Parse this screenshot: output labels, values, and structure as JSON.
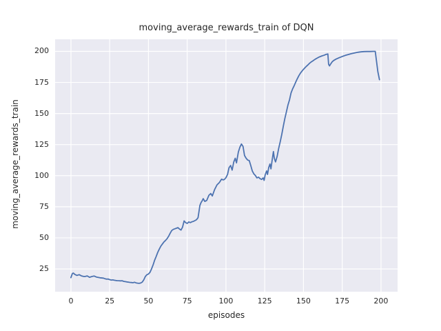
{
  "figure": {
    "background": "#ffffff"
  },
  "chart_data": {
    "type": "line",
    "title": "moving_average_rewards_train of DQN",
    "xlabel": "episodes",
    "ylabel": "moving_average_rewards_train",
    "x_ticks": [
      0,
      25,
      50,
      75,
      100,
      125,
      150,
      175,
      200
    ],
    "y_ticks": [
      25,
      50,
      75,
      100,
      125,
      150,
      175,
      200
    ],
    "xlim": [
      -10.2,
      210.7
    ],
    "ylim": [
      6.7,
      209.7
    ],
    "grid": true,
    "legend": false,
    "style": {
      "axes_background": "#eaeaf2",
      "grid_color": "#ffffff",
      "line_color": "#4c72b0",
      "text_color": "#262626",
      "line_width": 1.8
    },
    "series": [
      {
        "name": "moving_average_rewards_train",
        "points": [
          [
            0,
            18.0
          ],
          [
            0.9,
            21.3
          ],
          [
            1.6,
            21.7
          ],
          [
            2.5,
            20.6
          ],
          [
            3.9,
            19.8
          ],
          [
            5.3,
            20.4
          ],
          [
            6.8,
            19.4
          ],
          [
            8,
            19.0
          ],
          [
            9,
            18.9
          ],
          [
            10.5,
            19.4
          ],
          [
            12,
            18.3
          ],
          [
            13.5,
            18.9
          ],
          [
            15,
            19.3
          ],
          [
            16.4,
            18.5
          ],
          [
            18.7,
            17.9
          ],
          [
            20.9,
            17.6
          ],
          [
            22,
            17.1
          ],
          [
            23,
            16.8
          ],
          [
            24,
            16.9
          ],
          [
            25,
            16.4
          ],
          [
            26,
            16.1
          ],
          [
            27,
            16.2
          ],
          [
            28,
            15.9
          ],
          [
            29,
            15.7
          ],
          [
            30,
            15.6
          ],
          [
            31,
            15.5
          ],
          [
            32,
            15.4
          ],
          [
            33,
            15.5
          ],
          [
            34,
            15.0
          ],
          [
            35,
            14.8
          ],
          [
            36,
            14.6
          ],
          [
            37,
            14.4
          ],
          [
            38,
            14.2
          ],
          [
            39,
            14.1
          ],
          [
            40,
            13.9
          ],
          [
            41,
            14.3
          ],
          [
            42,
            13.8
          ],
          [
            43,
            13.6
          ],
          [
            44,
            13.4
          ],
          [
            45,
            13.7
          ],
          [
            46,
            14.4
          ],
          [
            47,
            16.3
          ],
          [
            48,
            18.9
          ],
          [
            49,
            20.4
          ],
          [
            50,
            20.9
          ],
          [
            51,
            22.3
          ],
          [
            52,
            25.0
          ],
          [
            53,
            28.3
          ],
          [
            54,
            32.0
          ],
          [
            55,
            35.1
          ],
          [
            56,
            38.3
          ],
          [
            57,
            41.0
          ],
          [
            58,
            43.3
          ],
          [
            59,
            45.1
          ],
          [
            60,
            46.7
          ],
          [
            61,
            47.9
          ],
          [
            62,
            49.3
          ],
          [
            63,
            51.3
          ],
          [
            64,
            53.7
          ],
          [
            65,
            55.9
          ],
          [
            66,
            56.8
          ],
          [
            67,
            57.3
          ],
          [
            68,
            57.7
          ],
          [
            69,
            58.2
          ],
          [
            70,
            57.1
          ],
          [
            71,
            56.3
          ],
          [
            72,
            58.6
          ],
          [
            73,
            63.6
          ],
          [
            74,
            62.3
          ],
          [
            75,
            61.6
          ],
          [
            76,
            62.8
          ],
          [
            77,
            62.3
          ],
          [
            78,
            62.9
          ],
          [
            79,
            63.3
          ],
          [
            80,
            63.9
          ],
          [
            81,
            64.6
          ],
          [
            82,
            66.2
          ],
          [
            82.7,
            72.0
          ],
          [
            83.2,
            76.1
          ],
          [
            84,
            78.5
          ],
          [
            84.6,
            79.7
          ],
          [
            85.3,
            81.5
          ],
          [
            86.4,
            79.3
          ],
          [
            87.6,
            80.1
          ],
          [
            89,
            84.3
          ],
          [
            90.2,
            85.7
          ],
          [
            91.2,
            83.7
          ],
          [
            92.7,
            88.9
          ],
          [
            94.2,
            92.6
          ],
          [
            95.7,
            94.5
          ],
          [
            97.2,
            97.2
          ],
          [
            98.2,
            96.6
          ],
          [
            99,
            97.0
          ],
          [
            100,
            98.4
          ],
          [
            101,
            101.0
          ],
          [
            102,
            106.5
          ],
          [
            103,
            108.2
          ],
          [
            104,
            104.5
          ],
          [
            105,
            111.0
          ],
          [
            106,
            114.0
          ],
          [
            106.8,
            110.3
          ],
          [
            108,
            119.0
          ],
          [
            109,
            123.0
          ],
          [
            110,
            125.5
          ],
          [
            111,
            123.5
          ],
          [
            112,
            116.2
          ],
          [
            113,
            114.0
          ],
          [
            114,
            112.6
          ],
          [
            115,
            112.2
          ],
          [
            116,
            108.2
          ],
          [
            117,
            103.7
          ],
          [
            118,
            101.5
          ],
          [
            119,
            100.1
          ],
          [
            120,
            98.2
          ],
          [
            121,
            98.8
          ],
          [
            122,
            97.6
          ],
          [
            123,
            97.0
          ],
          [
            124,
            98.2
          ],
          [
            124.6,
            96.2
          ],
          [
            125.3,
            100.8
          ],
          [
            126.2,
            103.8
          ],
          [
            126.8,
            101.0
          ],
          [
            127.6,
            106.6
          ],
          [
            128.4,
            109.4
          ],
          [
            129,
            105.5
          ],
          [
            129.8,
            112.7
          ],
          [
            130.6,
            119.4
          ],
          [
            131.2,
            113.9
          ],
          [
            132,
            111.1
          ],
          [
            133,
            115.5
          ],
          [
            134,
            121.9
          ],
          [
            135,
            127.4
          ],
          [
            136,
            133.1
          ],
          [
            137,
            139.9
          ],
          [
            138,
            146.0
          ],
          [
            139,
            151.5
          ],
          [
            140,
            156.9
          ],
          [
            141,
            161.1
          ],
          [
            142,
            166.6
          ],
          [
            143,
            169.9
          ],
          [
            144,
            172.4
          ],
          [
            145,
            175.3
          ],
          [
            146,
            177.9
          ],
          [
            147,
            180.4
          ],
          [
            148,
            182.4
          ],
          [
            149,
            184.1
          ],
          [
            150,
            185.5
          ],
          [
            151,
            186.9
          ],
          [
            152,
            188.1
          ],
          [
            153,
            189.3
          ],
          [
            154,
            190.5
          ],
          [
            155,
            191.5
          ],
          [
            156,
            192.3
          ],
          [
            157,
            193.2
          ],
          [
            158,
            194.0
          ],
          [
            159,
            194.7
          ],
          [
            160,
            195.4
          ],
          [
            161,
            195.9
          ],
          [
            162,
            196.4
          ],
          [
            163,
            196.8
          ],
          [
            164,
            197.3
          ],
          [
            165,
            197.7
          ],
          [
            165.7,
            197.9
          ],
          [
            166.2,
            189.6
          ],
          [
            166.8,
            188.3
          ],
          [
            167.5,
            189.8
          ],
          [
            168.5,
            191.6
          ],
          [
            169.5,
            192.7
          ],
          [
            171,
            193.8
          ],
          [
            173,
            194.9
          ],
          [
            175,
            195.9
          ],
          [
            177,
            196.8
          ],
          [
            179,
            197.5
          ],
          [
            181,
            198.2
          ],
          [
            183,
            198.8
          ],
          [
            185,
            199.3
          ],
          [
            187,
            199.6
          ],
          [
            189,
            199.8
          ],
          [
            191,
            199.9
          ],
          [
            193,
            199.9
          ],
          [
            195,
            200.0
          ],
          [
            196.3,
            200.0
          ],
          [
            197,
            193.0
          ],
          [
            198,
            183.5
          ],
          [
            199,
            177.2
          ]
        ]
      }
    ]
  }
}
